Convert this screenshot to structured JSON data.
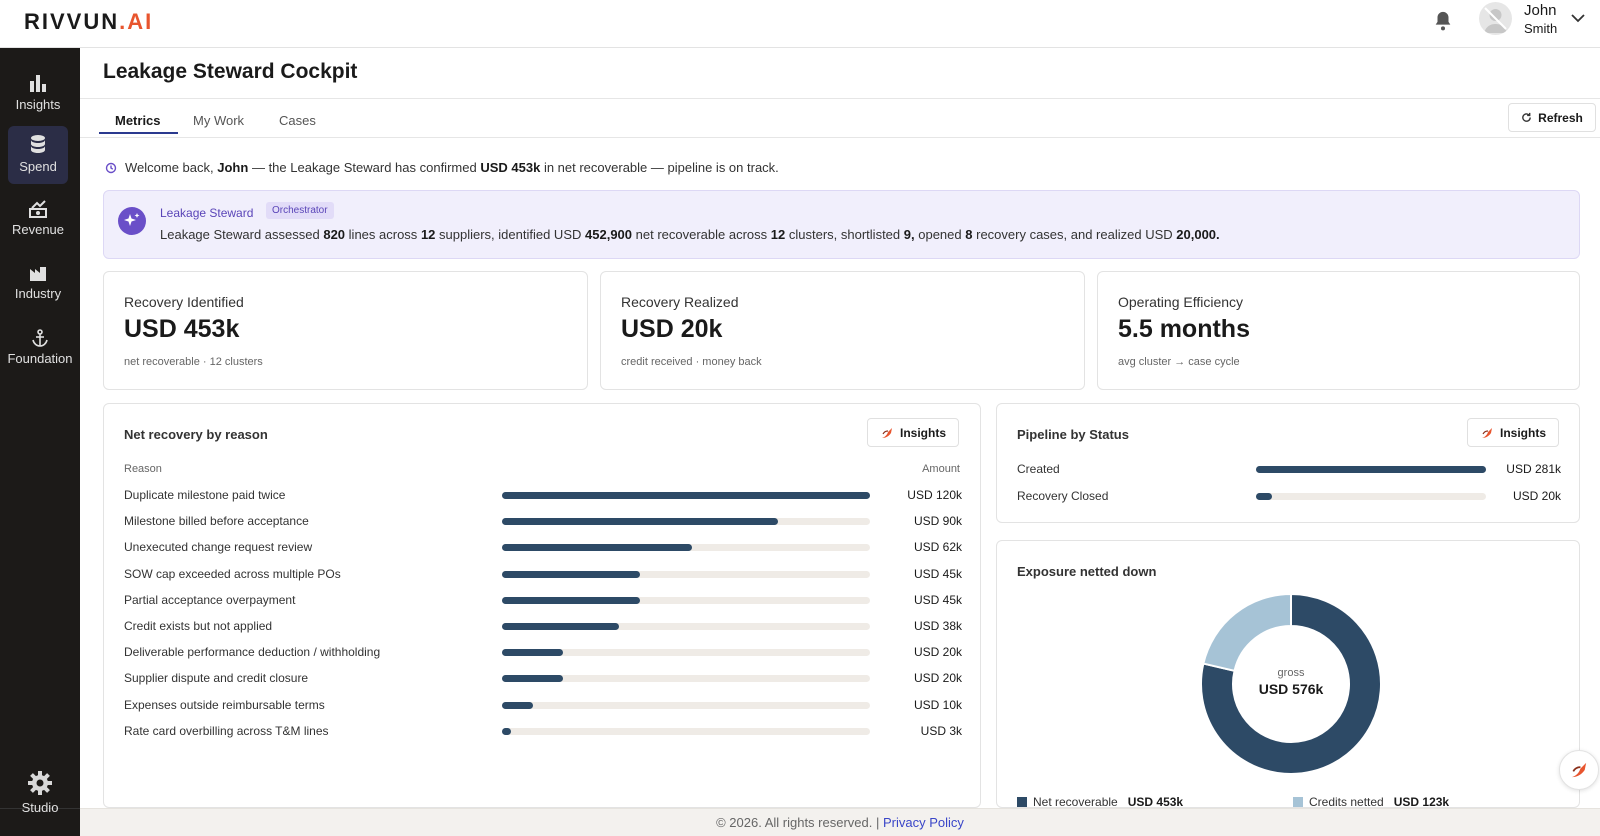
{
  "brand": {
    "name": "RIVVUN",
    "suffix": ".AI"
  },
  "user": {
    "first_name": "John",
    "last_name": "Smith"
  },
  "sidebar": {
    "items": [
      {
        "label": "Insights",
        "icon": "bar-chart-icon"
      },
      {
        "label": "Spend",
        "icon": "database-icon",
        "active": true
      },
      {
        "label": "Revenue",
        "icon": "revenue-icon"
      },
      {
        "label": "Industry",
        "icon": "factory-icon"
      },
      {
        "label": "Foundation",
        "icon": "anchor-icon"
      }
    ],
    "studio": {
      "label": "Studio",
      "icon": "gear-icon"
    }
  },
  "page": {
    "title": "Leakage Steward Cockpit"
  },
  "tabs": [
    {
      "label": "Metrics",
      "active": true
    },
    {
      "label": "My Work"
    },
    {
      "label": "Cases"
    }
  ],
  "refresh_label": "Refresh",
  "welcome": {
    "prefix": "Welcome back,",
    "name": "John",
    "middle": "— the Leakage Steward has confirmed",
    "amount": "USD 453k",
    "suffix": "in net recoverable — pipeline is on track."
  },
  "steward": {
    "name": "Leakage Steward",
    "badge": "Orchestrator",
    "t1": "Leakage Steward assessed",
    "lines": "820",
    "t2": "lines across",
    "suppliers": "12",
    "t3": "suppliers, identified USD",
    "net": "452,900",
    "t4": "net recoverable across",
    "clusters": "12",
    "t5": "clusters, shortlisted",
    "shortlisted": "9,",
    "t6": "opened",
    "opened": "8",
    "t7": "recovery cases, and realized USD",
    "realized": "20,000."
  },
  "kpis": [
    {
      "label": "Recovery Identified",
      "value": "USD 453k",
      "sub": "net recoverable · 12 clusters"
    },
    {
      "label": "Recovery Realized",
      "value": "USD 20k",
      "sub": "credit received · money back"
    },
    {
      "label": "Operating Efficiency",
      "value": "5.5 months",
      "sub": "avg cluster → case cycle"
    }
  ],
  "reason_card": {
    "title": "Net recovery by reason",
    "insights_label": "Insights",
    "col_reason": "Reason",
    "col_amount": "Amount",
    "rows": [
      {
        "label": "Duplicate milestone paid twice",
        "amount": "USD 120k",
        "value": 120
      },
      {
        "label": "Milestone billed before acceptance",
        "amount": "USD 90k",
        "value": 90
      },
      {
        "label": "Unexecuted change request review",
        "amount": "USD 62k",
        "value": 62
      },
      {
        "label": "SOW cap exceeded across multiple POs",
        "amount": "USD 45k",
        "value": 45
      },
      {
        "label": "Partial acceptance overpayment",
        "amount": "USD 45k",
        "value": 45
      },
      {
        "label": "Credit exists but not applied",
        "amount": "USD 38k",
        "value": 38
      },
      {
        "label": "Deliverable performance deduction / withholding",
        "amount": "USD 20k",
        "value": 20
      },
      {
        "label": "Supplier dispute and credit closure",
        "amount": "USD 20k",
        "value": 20
      },
      {
        "label": "Expenses outside reimbursable terms",
        "amount": "USD 10k",
        "value": 10
      },
      {
        "label": "Rate card overbilling across T&M lines",
        "amount": "USD 3k",
        "value": 3
      }
    ]
  },
  "pipeline_card": {
    "title": "Pipeline by Status",
    "insights_label": "Insights",
    "rows": [
      {
        "label": "Created",
        "amount": "USD 281k",
        "value": 281
      },
      {
        "label": "Recovery Closed",
        "amount": "USD 20k",
        "value": 20
      }
    ]
  },
  "exposure_card": {
    "title": "Exposure netted down",
    "center_label": "gross",
    "center_value": "USD 576k",
    "segments": [
      {
        "name": "Net recoverable",
        "amount": "USD 453k",
        "value": 453,
        "color": "#2d4a66"
      },
      {
        "name": "Credits netted",
        "amount": "USD 123k",
        "value": 123,
        "color": "#a6c3d6"
      }
    ]
  },
  "footer": {
    "copyright": "© 2026. All rights reserved. |",
    "link": "Privacy Policy"
  }
}
